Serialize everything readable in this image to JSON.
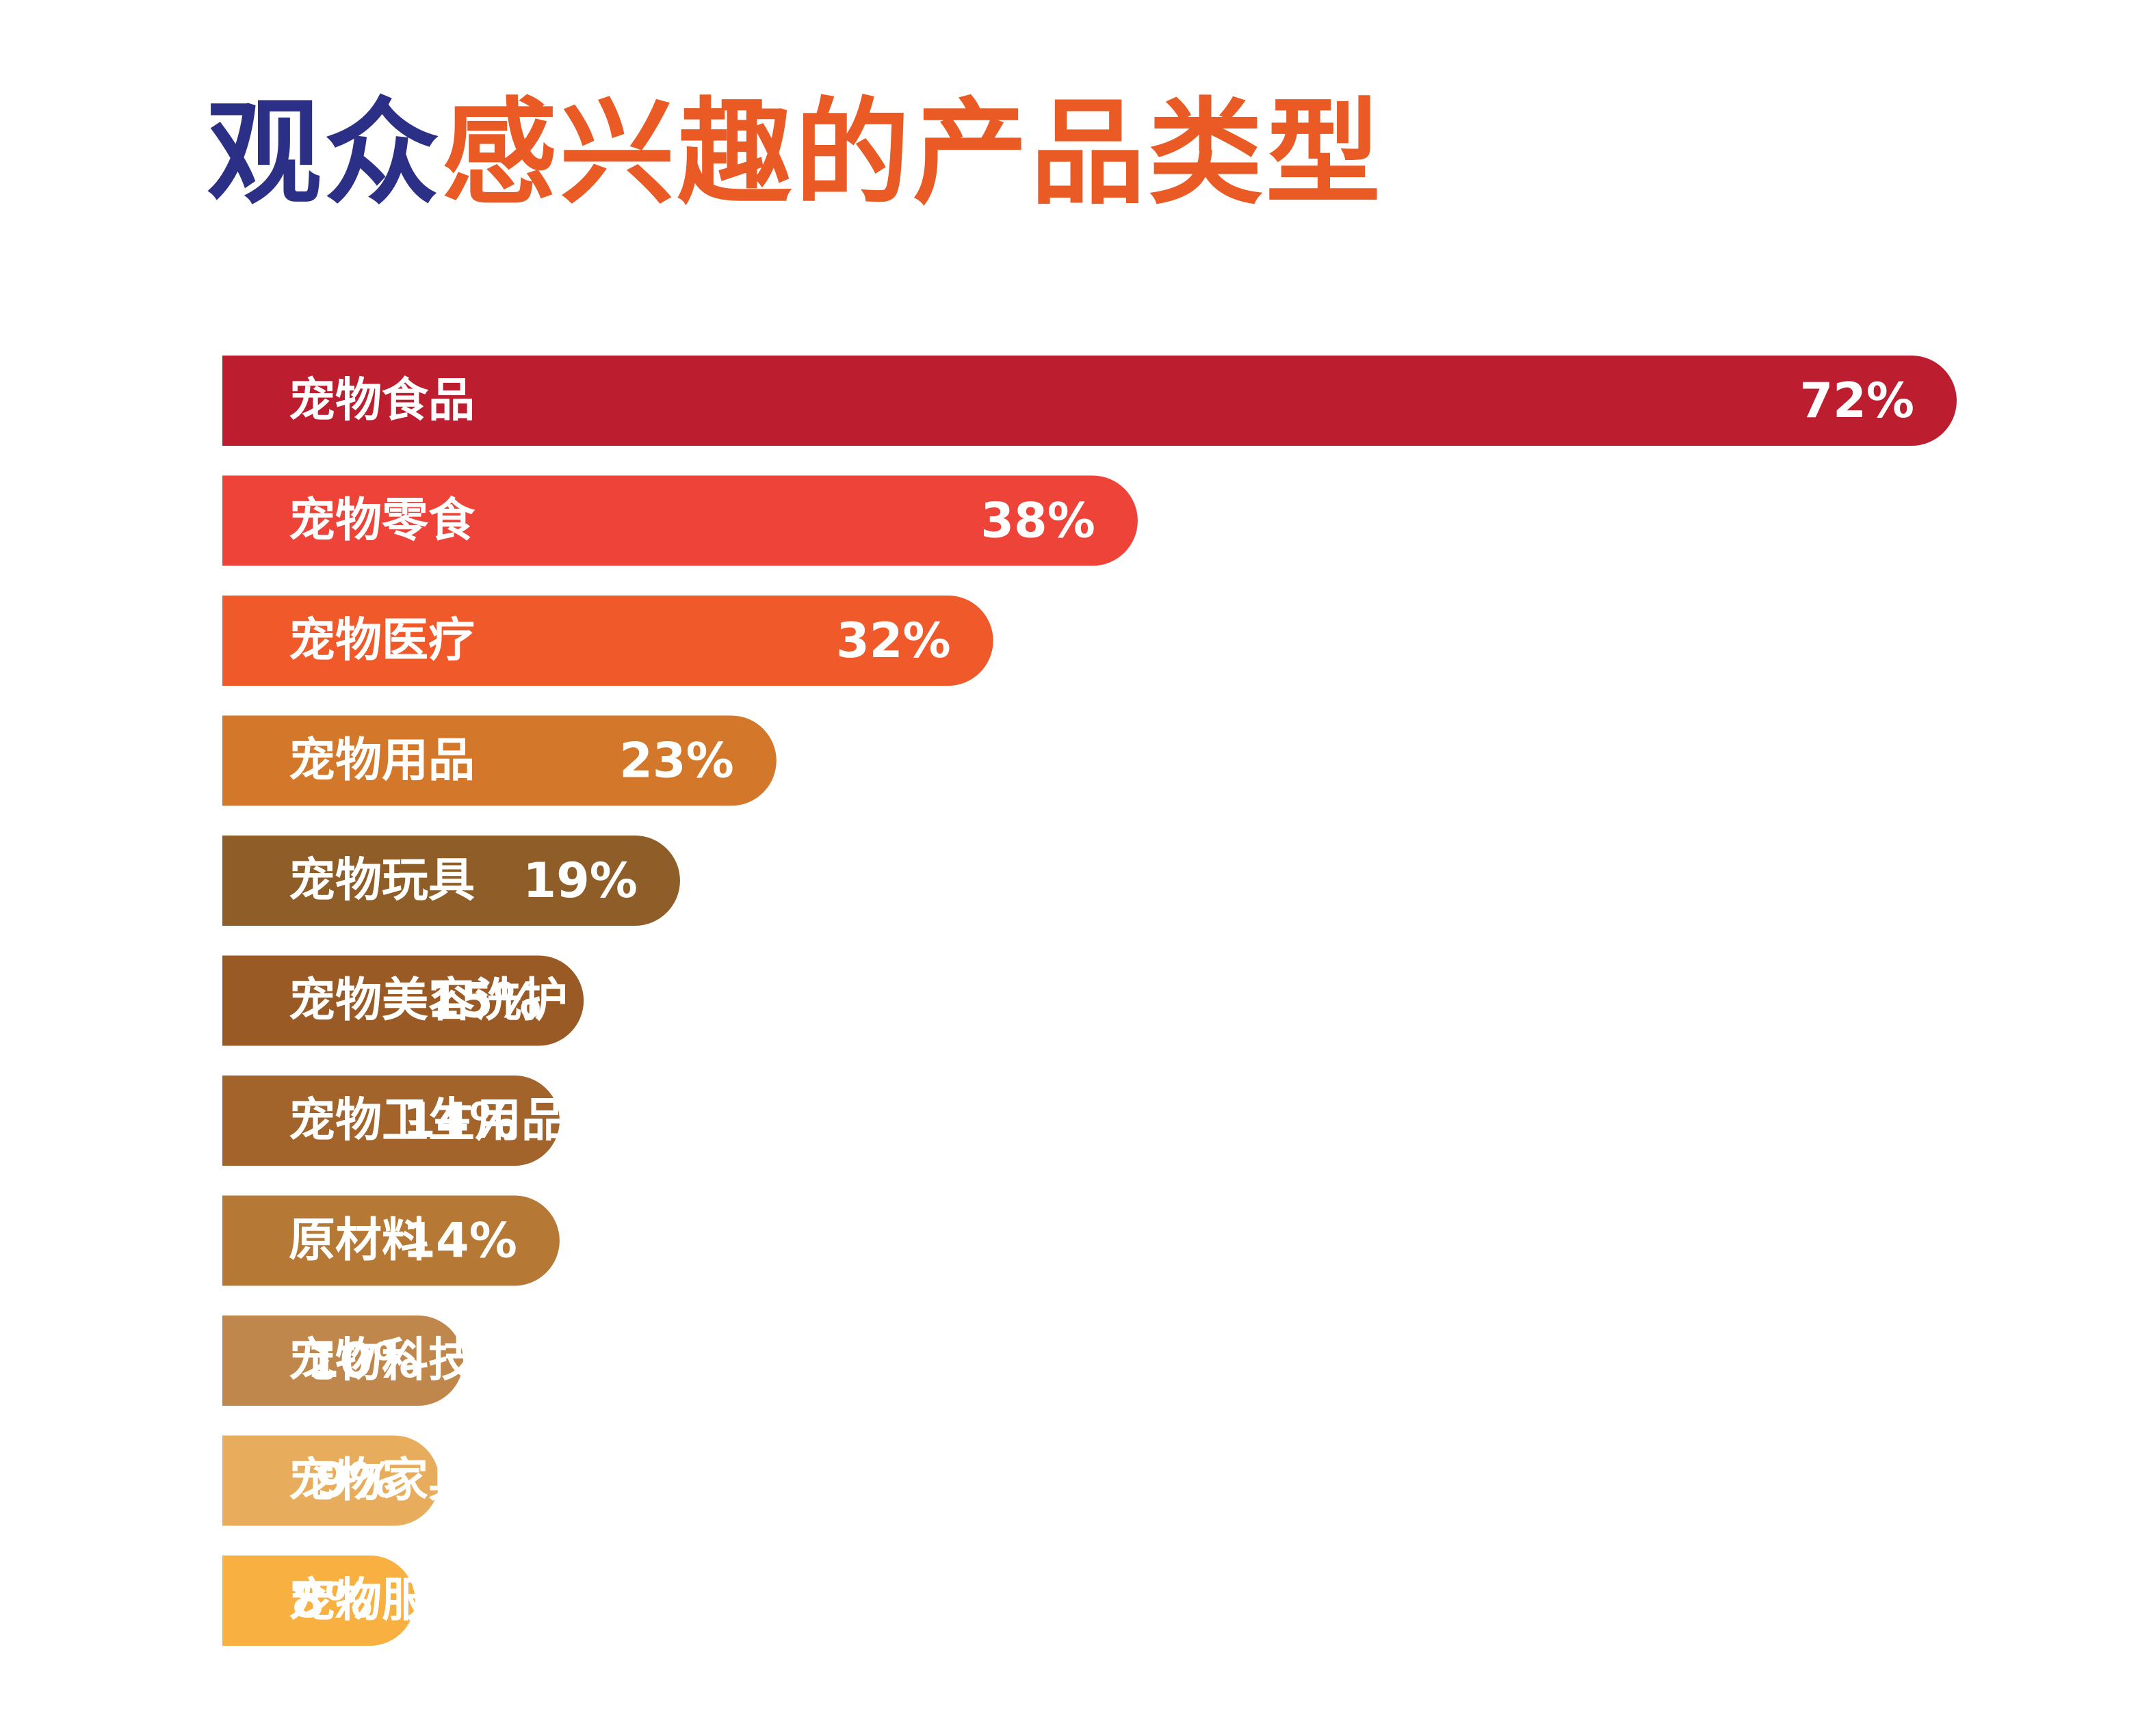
{
  "title": {
    "part1": "观众",
    "part2": "感兴趣的产品类型",
    "part1_color": "#2b2f86",
    "part2_color": "#ea5a24"
  },
  "chart_data": {
    "type": "bar",
    "orientation": "horizontal",
    "title": "观众感兴趣的产品类型",
    "xlabel": "",
    "ylabel": "",
    "xlim": [
      0,
      72
    ],
    "grid": false,
    "categories": [
      "宠物食品",
      "宠物零食",
      "宠物医疗",
      "宠物用品",
      "宠物玩具",
      "宠物美容洗护",
      "宠物卫生用品",
      "原材料",
      "宠物科技产品",
      "宠物家具",
      "宠物服装"
    ],
    "values": [
      72,
      38,
      32,
      23,
      19,
      15,
      14,
      14,
      10,
      9,
      8
    ],
    "value_labels": [
      "72%",
      "38%",
      "32%",
      "23%",
      "19%",
      "15%",
      "14%",
      "14%",
      "10%",
      "9%",
      "8%"
    ],
    "colors": [
      "#bd1e2f",
      "#ee4338",
      "#f05a2b",
      "#d3772b",
      "#8f5d27",
      "#9a5a25",
      "#a3642b",
      "#b57835",
      "#c0874d",
      "#e8ad5c",
      "#f8b040"
    ]
  }
}
